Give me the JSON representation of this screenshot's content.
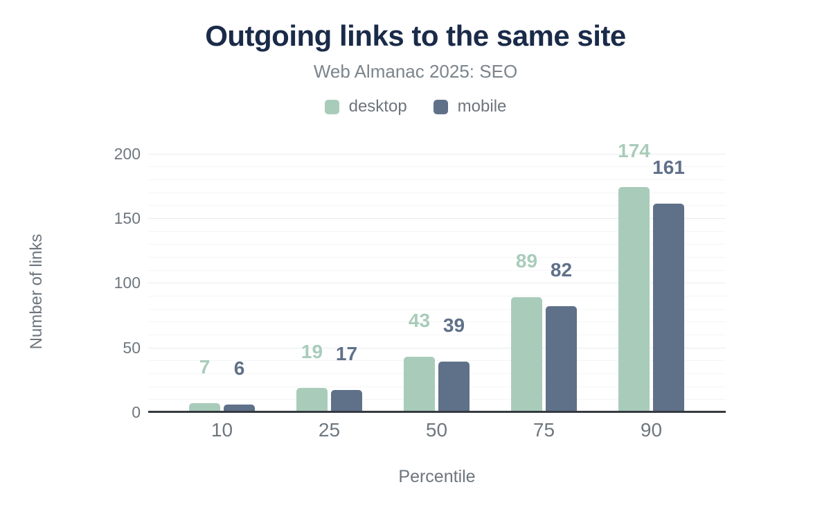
{
  "title": "Outgoing links to the same site",
  "subtitle": "Web Almanac 2025: SEO",
  "legend": {
    "items": [
      {
        "label": "desktop",
        "color": "#a9ccba"
      },
      {
        "label": "mobile",
        "color": "#5f7089"
      }
    ]
  },
  "axes": {
    "x_title": "Percentile",
    "y_title": "Number of links"
  },
  "colors": {
    "background": "#ffffff",
    "title": "#1a2b49",
    "subtitle": "#7b848b",
    "axis_text": "#6e777e",
    "desktop": "#a9ccba",
    "mobile": "#5f7089",
    "grid_major": "#e9ebed",
    "grid_minor": "#f4f5f6",
    "axis_line": "#343a40"
  },
  "chart_data": {
    "type": "bar",
    "title": "Outgoing links to the same site",
    "subtitle": "Web Almanac 2025: SEO",
    "categories": [
      "10",
      "25",
      "50",
      "75",
      "90"
    ],
    "series": [
      {
        "name": "desktop",
        "color": "#a9ccba",
        "values": [
          7,
          19,
          43,
          89,
          174
        ]
      },
      {
        "name": "mobile",
        "color": "#5f7089",
        "values": [
          6,
          17,
          39,
          82,
          161
        ]
      }
    ],
    "xlabel": "Percentile",
    "ylabel": "Number of links",
    "ylim": [
      0,
      200
    ],
    "yticks": [
      0,
      50,
      100,
      150,
      200
    ],
    "minor_tick_interval": 10,
    "grid": "on",
    "legend_position": "top",
    "data_labels": "value shown above each bar in its series color"
  }
}
